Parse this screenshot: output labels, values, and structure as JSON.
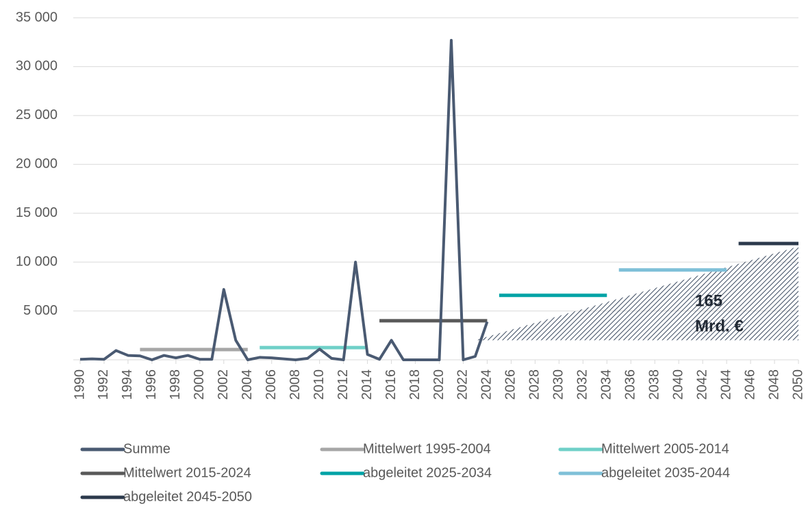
{
  "chart_data": {
    "type": "line",
    "xlim": [
      1990,
      2050
    ],
    "xticks": [
      1990,
      1992,
      1994,
      1996,
      1998,
      2000,
      2002,
      2004,
      2006,
      2008,
      2010,
      2012,
      2014,
      2016,
      2018,
      2020,
      2022,
      2024,
      2026,
      2028,
      2030,
      2032,
      2034,
      2036,
      2038,
      2040,
      2042,
      2044,
      2046,
      2048,
      2050
    ],
    "ylim": [
      0,
      35000
    ],
    "yticks": [
      {
        "value": 5000,
        "label": "5 000"
      },
      {
        "value": 10000,
        "label": "10 000"
      },
      {
        "value": 15000,
        "label": "15 000"
      },
      {
        "value": 20000,
        "label": "20 000"
      },
      {
        "value": 25000,
        "label": "25 000"
      },
      {
        "value": 30000,
        "label": "30 000"
      },
      {
        "value": 35000,
        "label": "35 000"
      }
    ],
    "grid": true,
    "legend": "bottom",
    "series": [
      {
        "name": "Summe",
        "color": "#4a5a72",
        "x": [
          1990,
          1991,
          1992,
          1993,
          1994,
          1995,
          1996,
          1997,
          1998,
          1999,
          2000,
          2001,
          2002,
          2003,
          2004,
          2005,
          2006,
          2007,
          2008,
          2009,
          2010,
          2011,
          2012,
          2013,
          2014,
          2015,
          2016,
          2017,
          2018,
          2019,
          2020,
          2021,
          2022,
          2023,
          2024
        ],
        "values": [
          50,
          100,
          50,
          950,
          450,
          400,
          0,
          450,
          200,
          450,
          50,
          50,
          7200,
          2000,
          0,
          250,
          200,
          100,
          0,
          150,
          1100,
          150,
          0,
          10000,
          550,
          50,
          2000,
          0,
          0,
          0,
          0,
          32700,
          0,
          350,
          3900
        ]
      },
      {
        "name": "Mittelwert 1995-2004",
        "color": "#a6a6a6",
        "x": [
          1995,
          2004
        ],
        "values": [
          1050,
          1050
        ]
      },
      {
        "name": "Mittelwert 2005-2014",
        "color": "#6fd0c8",
        "x": [
          2005,
          2014
        ],
        "values": [
          1250,
          1250
        ]
      },
      {
        "name": "Mittelwert 2015-2024",
        "color": "#595959",
        "x": [
          2015,
          2024
        ],
        "values": [
          4000,
          4000
        ]
      },
      {
        "name": "abgeleitet 2025-2034",
        "color": "#00a3a6",
        "x": [
          2025,
          2034
        ],
        "values": [
          6600,
          6600
        ]
      },
      {
        "name": "abgeleitet 2035-2044",
        "color": "#7fc0d8",
        "x": [
          2035,
          2044
        ],
        "values": [
          9200,
          9200
        ]
      },
      {
        "name": "abgeleitet 2045-2050",
        "color": "#2c3a4c",
        "x": [
          2045,
          2050
        ],
        "values": [
          11900,
          11900
        ]
      }
    ],
    "hatched_area": {
      "x": [
        2023,
        2050
      ],
      "values": [
        2000,
        11600
      ],
      "base": 2000,
      "color": "#3b4a60"
    },
    "annotation": [
      "165",
      "Mrd. €"
    ]
  }
}
